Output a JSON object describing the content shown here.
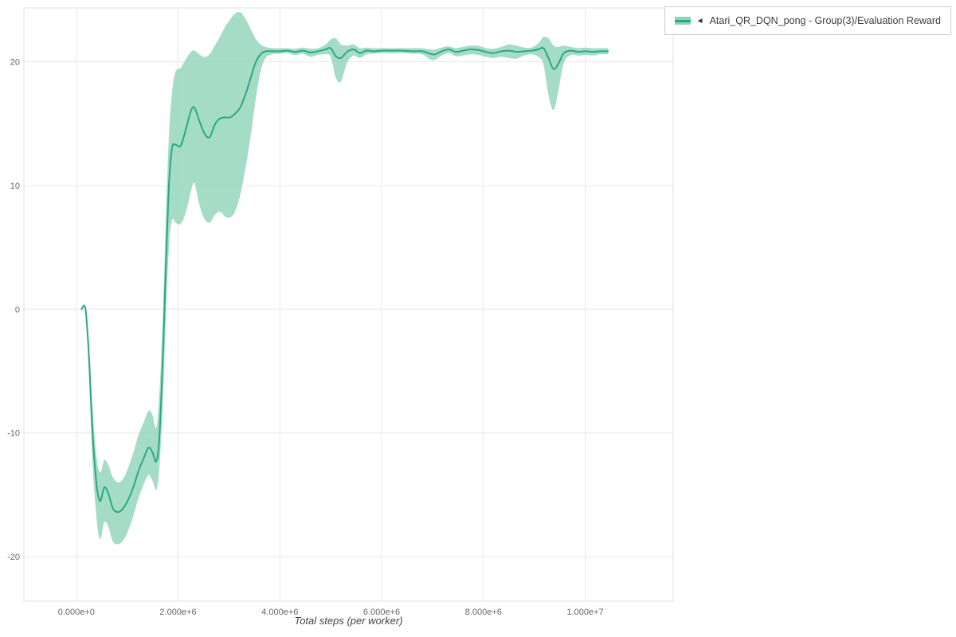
{
  "page": {
    "background": "#ffffff"
  },
  "legend": {
    "collapse_icon": "◄",
    "label": "Atari_QR_DQN_pong - Group(3)/Evaluation Reward",
    "border_color": "#cccccc",
    "text_color": "#3c3c3c"
  },
  "chart_data": {
    "type": "line",
    "title": "",
    "xlabel": "Total steps (per worker)",
    "ylabel": "",
    "xlim": [
      -1030000,
      11730000
    ],
    "ylim": [
      -23.6,
      24.35
    ],
    "x_ticks": [
      0,
      2000000,
      4000000,
      6000000,
      8000000,
      10000000
    ],
    "x_tick_labels": [
      "0.000e+0",
      "2.000e+6",
      "4.000e+6",
      "6.000e+6",
      "8.000e+6",
      "1.000e+7"
    ],
    "y_ticks": [
      -20,
      -10,
      0,
      10,
      20
    ],
    "y_tick_labels": [
      "-20",
      "-10",
      "0",
      "10",
      "20"
    ],
    "grid": true,
    "grid_color": "#e8e8e8",
    "frame_color": "#e0e0e0",
    "axis_text_color": "#666666",
    "legend_position": "top-right-outside",
    "series": [
      {
        "name": "Atari_QR_DQN_pong - Group(3)/Evaluation Reward",
        "color": "#2aa886",
        "band_color": "#8fd3b8",
        "band_opacity": 0.8,
        "x": [
          100000,
          180000,
          250000,
          320000,
          400000,
          470000,
          550000,
          630000,
          720000,
          820000,
          920000,
          1020000,
          1120000,
          1220000,
          1320000,
          1420000,
          1500000,
          1570000,
          1630000,
          1700000,
          1760000,
          1820000,
          1880000,
          1950000,
          2050000,
          2150000,
          2250000,
          2320000,
          2420000,
          2520000,
          2620000,
          2720000,
          2820000,
          2920000,
          3020000,
          3120000,
          3220000,
          3320000,
          3420000,
          3520000,
          3620000,
          3720000,
          3850000,
          4000000,
          4150000,
          4300000,
          4450000,
          4600000,
          4750000,
          4900000,
          5000000,
          5100000,
          5200000,
          5320000,
          5450000,
          5570000,
          5700000,
          5850000,
          6000000,
          6200000,
          6400000,
          6600000,
          6800000,
          6950000,
          7050000,
          7180000,
          7320000,
          7460000,
          7600000,
          7750000,
          7900000,
          8050000,
          8200000,
          8350000,
          8500000,
          8650000,
          8800000,
          8950000,
          9080000,
          9180000,
          9280000,
          9380000,
          9480000,
          9580000,
          9720000,
          9860000,
          10000000,
          10150000,
          10300000,
          10450000
        ],
        "mean": [
          0,
          0,
          -4,
          -10,
          -14.2,
          -15.5,
          -14.4,
          -14.9,
          -16.1,
          -16.4,
          -16.1,
          -15.4,
          -14.4,
          -13.1,
          -12.1,
          -11.2,
          -11.6,
          -12.3,
          -10.5,
          -4,
          3.5,
          10,
          13,
          13.3,
          13.2,
          14.5,
          16,
          16.3,
          15.2,
          14.2,
          13.9,
          14.9,
          15.4,
          15.5,
          15.5,
          15.8,
          16.3,
          17.3,
          18.6,
          19.9,
          20.6,
          20.85,
          20.85,
          20.85,
          20.9,
          20.8,
          20.9,
          20.75,
          20.85,
          21,
          21.1,
          20.45,
          20.3,
          20.8,
          21,
          20.7,
          20.9,
          20.85,
          20.9,
          20.9,
          20.9,
          20.85,
          20.85,
          20.65,
          20.6,
          20.85,
          21,
          20.8,
          20.9,
          21,
          20.95,
          20.8,
          20.7,
          20.85,
          20.9,
          20.8,
          20.85,
          20.9,
          21,
          21.1,
          20.3,
          19.4,
          19.9,
          20.7,
          20.9,
          20.8,
          20.85,
          20.8,
          20.85,
          20.85
        ],
        "lower": [
          0,
          0,
          -5.5,
          -12.5,
          -17,
          -18.6,
          -17.2,
          -17.6,
          -18.8,
          -19,
          -18.7,
          -17.9,
          -16.7,
          -15.3,
          -14.2,
          -13.4,
          -13.9,
          -14.6,
          -13,
          -7.5,
          -0.5,
          5,
          7.2,
          7,
          6.9,
          7.8,
          9.5,
          10.2,
          8.4,
          7.3,
          7,
          7.6,
          7.9,
          7.5,
          7.4,
          7.9,
          9.2,
          11.3,
          13.8,
          16.8,
          19.2,
          20.3,
          20.6,
          20.65,
          20.7,
          20.55,
          20.65,
          20.4,
          20.55,
          20.6,
          20.4,
          18.7,
          18.4,
          19.9,
          20.5,
          20.3,
          20.6,
          20.65,
          20.7,
          20.7,
          20.7,
          20.65,
          20.6,
          20.2,
          20.15,
          20.5,
          20.7,
          20.45,
          20.5,
          20.6,
          20.55,
          20.4,
          20.3,
          20.4,
          20.3,
          20.25,
          20.5,
          20.6,
          20.4,
          19.8,
          17.3,
          16.1,
          17.8,
          19.9,
          20.55,
          20.5,
          20.55,
          20.5,
          20.6,
          20.6
        ],
        "upper": [
          0,
          0,
          -2.8,
          -8,
          -12,
          -13.2,
          -12.2,
          -12.6,
          -13.6,
          -14,
          -13.7,
          -12.8,
          -11.6,
          -10.2,
          -9.2,
          -8.2,
          -8.6,
          -9.6,
          -7,
          -0.5,
          7.5,
          14,
          17.5,
          19.2,
          19.5,
          20.2,
          20.8,
          20.9,
          20.6,
          20.4,
          20.6,
          21.3,
          22,
          22.8,
          23.4,
          23.9,
          24,
          23.5,
          22.7,
          21.9,
          21.4,
          21.2,
          21.1,
          21.1,
          21.1,
          21.05,
          21.15,
          21.05,
          21.1,
          21.4,
          21.8,
          21.9,
          21.4,
          21.3,
          21.4,
          21.1,
          21.15,
          21.1,
          21.1,
          21.1,
          21.1,
          21.1,
          21.1,
          21,
          21,
          21.15,
          21.25,
          21.1,
          21.2,
          21.3,
          21.3,
          21.1,
          21.05,
          21.2,
          21.4,
          21.3,
          21.15,
          21.15,
          21.5,
          22,
          21.9,
          21.3,
          21.2,
          21.3,
          21.2,
          21.1,
          21.15,
          21.1,
          21.1,
          21.1
        ]
      }
    ]
  }
}
